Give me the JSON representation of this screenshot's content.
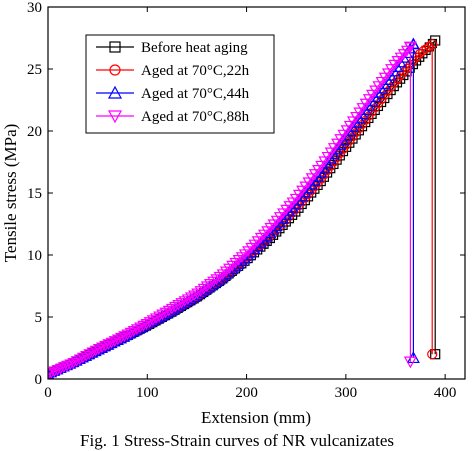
{
  "chart_data": {
    "type": "line",
    "xlabel": "Extension (mm)",
    "ylabel": "Tensile stress (MPa)",
    "xlim": [
      0,
      420
    ],
    "ylim": [
      0,
      30
    ],
    "x_ticks": [
      0,
      100,
      200,
      300,
      400
    ],
    "y_ticks": [
      0,
      5,
      10,
      15,
      20,
      25,
      30
    ],
    "grid": false,
    "legend_position": "top-left",
    "series": [
      {
        "name": "Before heat aging",
        "color": "#000000",
        "marker": "square",
        "x": [
          0,
          25,
          50,
          75,
          100,
          125,
          150,
          175,
          200,
          225,
          250,
          275,
          300,
          325,
          350,
          375,
          390,
          390
        ],
        "y": [
          0.4,
          1.3,
          2.3,
          3.3,
          4.3,
          5.4,
          6.6,
          8.0,
          9.6,
          11.4,
          13.5,
          15.9,
          18.6,
          21.2,
          23.7,
          26.0,
          27.3,
          2.0
        ]
      },
      {
        "name": "Aged at 70°C,22h",
        "color": "#ff0000",
        "marker": "circle",
        "x": [
          0,
          25,
          50,
          75,
          100,
          125,
          150,
          175,
          200,
          225,
          250,
          275,
          300,
          325,
          350,
          375,
          387,
          387
        ],
        "y": [
          0.4,
          1.3,
          2.3,
          3.3,
          4.3,
          5.4,
          6.6,
          8.0,
          9.7,
          11.6,
          13.7,
          16.1,
          18.8,
          21.4,
          24.0,
          26.3,
          27.0,
          2.0
        ]
      },
      {
        "name": "Aged at 70°C,44h",
        "color": "#0000ff",
        "marker": "triangle-up",
        "x": [
          0,
          25,
          50,
          75,
          100,
          125,
          150,
          175,
          200,
          225,
          250,
          275,
          300,
          325,
          350,
          368,
          368
        ],
        "y": [
          0.4,
          1.3,
          2.3,
          3.3,
          4.4,
          5.5,
          6.7,
          8.1,
          9.8,
          11.8,
          14.1,
          16.6,
          19.5,
          22.2,
          24.9,
          27.0,
          1.7
        ]
      },
      {
        "name": "Aged at 70°C,88h",
        "color": "#ff00ff",
        "marker": "triangle-down",
        "x": [
          0,
          25,
          50,
          75,
          100,
          125,
          150,
          175,
          200,
          225,
          250,
          275,
          300,
          325,
          350,
          365,
          365
        ],
        "y": [
          0.4,
          1.3,
          2.4,
          3.4,
          4.5,
          5.7,
          6.9,
          8.4,
          10.2,
          12.3,
          14.6,
          17.2,
          20.0,
          22.8,
          25.5,
          26.8,
          1.4
        ]
      }
    ]
  },
  "caption": "Fig. 1 Stress-Strain curves of NR vulcanizates"
}
